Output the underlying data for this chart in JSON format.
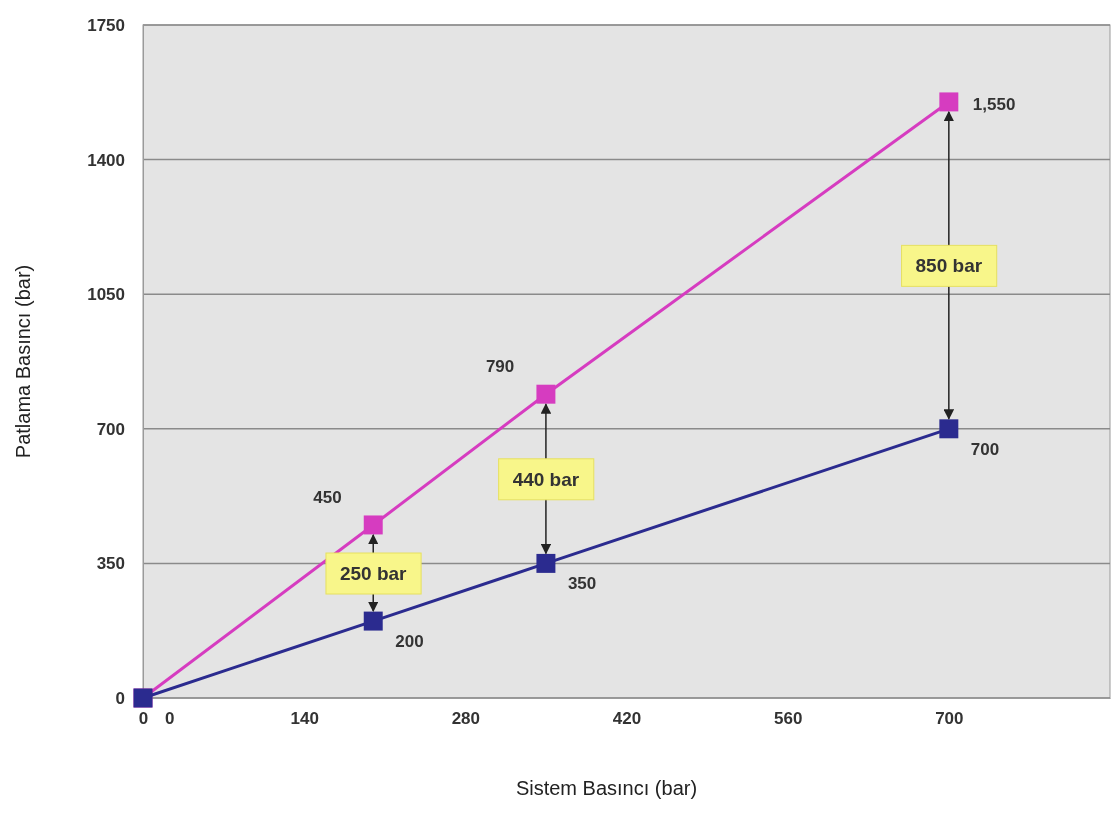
{
  "chart_data": {
    "type": "line",
    "xlabel": "Sistem Basıncı (bar)",
    "ylabel": "Patlama Basıncı (bar)",
    "x": [
      0,
      200,
      350,
      700
    ],
    "series": [
      {
        "color": "#d63cc0",
        "values": [
          0,
          450,
          790,
          1550
        ],
        "value_labels": [
          null,
          "450",
          "790",
          "1,550"
        ]
      },
      {
        "color": "#2b2b8f",
        "values": [
          0,
          200,
          350,
          700
        ],
        "value_labels": [
          "0",
          "200",
          "350",
          "700"
        ]
      }
    ],
    "xlim": [
      0,
      840
    ],
    "xticks": [
      0,
      140,
      280,
      420,
      560,
      700
    ],
    "ylim": [
      0,
      1750
    ],
    "yticks": [
      0,
      350,
      700,
      1050,
      1400,
      1750
    ],
    "grid": "y",
    "marker": "square",
    "line_style": "solid",
    "annotations": [
      "250 bar",
      "440 bar",
      "850 bar"
    ]
  }
}
